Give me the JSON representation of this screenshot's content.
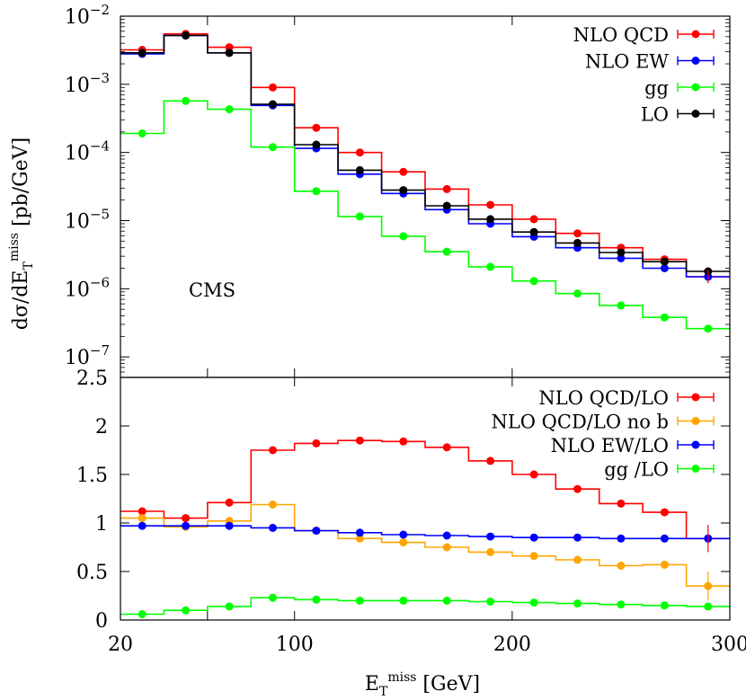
{
  "chart_data": [
    {
      "type": "line",
      "panel": "top",
      "ylabel": "dσ/dE_T^miss [pb/GeV]",
      "ylabel_parts": {
        "main": "dσ/dE",
        "sub": "T",
        "sup": "miss",
        "unit": " [pb/GeV]"
      },
      "yscale": "log",
      "ylim": [
        5e-08,
        0.01
      ],
      "xlim": [
        20,
        300
      ],
      "y_ticks": [
        {
          "value": 0.01,
          "base": "10",
          "exp": "−2"
        },
        {
          "value": 0.001,
          "base": "10",
          "exp": "−3"
        },
        {
          "value": 0.0001,
          "base": "10",
          "exp": "−4"
        },
        {
          "value": 1e-05,
          "base": "10",
          "exp": "−5"
        },
        {
          "value": 1e-06,
          "base": "10",
          "exp": "−6"
        },
        {
          "value": 1e-07,
          "base": "10",
          "exp": "−7"
        }
      ],
      "annotation": "CMS",
      "bin_edges": [
        20,
        40,
        60,
        80,
        100,
        120,
        140,
        160,
        180,
        200,
        220,
        240,
        260,
        280,
        300
      ],
      "x": [
        30,
        50,
        70,
        90,
        110,
        130,
        150,
        170,
        190,
        210,
        230,
        250,
        270,
        290
      ],
      "series": [
        {
          "name": "NLO QCD",
          "color": "#ff0000",
          "values": [
            0.0032,
            0.0055,
            0.0035,
            0.0009,
            0.00023,
            0.0001,
            5.2e-05,
            2.9e-05,
            1.7e-05,
            1.05e-05,
            6.5e-06,
            4e-06,
            2.7e-06,
            1.5e-06
          ]
        },
        {
          "name": "NLO EW",
          "color": "#0000ff",
          "values": [
            0.0028,
            0.0052,
            0.0029,
            0.00049,
            0.000115,
            4.8e-05,
            2.5e-05,
            1.45e-05,
            9e-06,
            5.8e-06,
            4e-06,
            2.8e-06,
            2e-06,
            1.5e-06
          ]
        },
        {
          "name": "gg",
          "color": "#00ff00",
          "values": [
            0.00019,
            0.00057,
            0.00043,
            0.00012,
            2.7e-05,
            1.15e-05,
            5.9e-06,
            3.5e-06,
            2.1e-06,
            1.3e-06,
            8.5e-07,
            5.7e-07,
            3.8e-07,
            2.6e-07
          ]
        },
        {
          "name": "LO",
          "color": "#000000",
          "values": [
            0.0029,
            0.0052,
            0.0029,
            0.00051,
            0.00013,
            5.5e-05,
            2.8e-05,
            1.65e-05,
            1.05e-05,
            6.8e-06,
            4.7e-06,
            3.4e-06,
            2.5e-06,
            1.8e-06
          ]
        }
      ]
    },
    {
      "type": "line",
      "panel": "bottom",
      "xlabel": "E_T^miss [GeV]",
      "xlabel_parts": {
        "main": "E",
        "sub": "T",
        "sup": "miss",
        "unit": " [GeV]"
      },
      "yscale": "linear",
      "ylim": [
        0,
        2.5
      ],
      "xlim": [
        20,
        300
      ],
      "y_ticks": [
        "0",
        "0.5",
        "1",
        "1.5",
        "2",
        "2.5"
      ],
      "x_ticks": [
        "20",
        "100",
        "200",
        "300"
      ],
      "bin_edges": [
        20,
        40,
        60,
        80,
        100,
        120,
        140,
        160,
        180,
        200,
        220,
        240,
        260,
        280,
        300
      ],
      "x": [
        30,
        50,
        70,
        90,
        110,
        130,
        150,
        170,
        190,
        210,
        230,
        250,
        270,
        290
      ],
      "series": [
        {
          "name": "NLO QCD/LO",
          "color": "#ff0000",
          "values": [
            1.12,
            1.05,
            1.21,
            1.75,
            1.82,
            1.85,
            1.84,
            1.78,
            1.64,
            1.5,
            1.35,
            1.2,
            1.11,
            0.84
          ]
        },
        {
          "name": "NLO QCD/LO no b",
          "color": "#ffa500",
          "values": [
            1.05,
            0.96,
            1.02,
            1.19,
            0.92,
            0.84,
            0.8,
            0.75,
            0.7,
            0.66,
            0.62,
            0.56,
            0.57,
            0.35
          ]
        },
        {
          "name": "NLO EW/LO",
          "color": "#0000ff",
          "values": [
            0.97,
            0.97,
            0.97,
            0.95,
            0.92,
            0.9,
            0.88,
            0.87,
            0.86,
            0.85,
            0.85,
            0.84,
            0.84,
            0.84
          ]
        },
        {
          "name": "gg /LO",
          "color": "#00ff00",
          "values": [
            0.06,
            0.1,
            0.14,
            0.23,
            0.21,
            0.2,
            0.2,
            0.2,
            0.19,
            0.18,
            0.17,
            0.16,
            0.15,
            0.14
          ]
        }
      ]
    }
  ]
}
